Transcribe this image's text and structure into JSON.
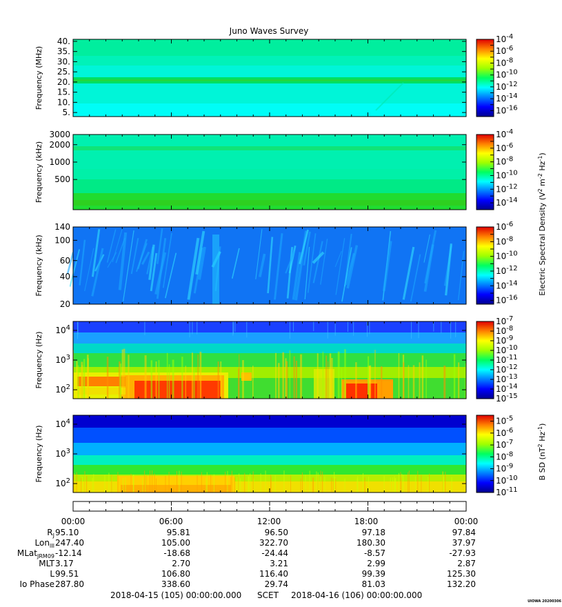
{
  "title": "Juno Waves Survey",
  "stamp": "UIOWA 20200306",
  "chart_data": [
    {
      "type": "heatmap",
      "name": "high-frequency",
      "ylabel": "Frequency (MHz)",
      "yticks": [
        "40.",
        "35.",
        "30.",
        "25.",
        "20.",
        "15.",
        "10.",
        "5."
      ],
      "ylim": [
        3,
        41
      ],
      "colorbar_ticks": [
        "10^-4",
        "10^-6",
        "10^-8",
        "10^-10",
        "10^-12",
        "10^-14",
        "10^-16"
      ],
      "colorbar_range": [
        -17,
        -4
      ]
    },
    {
      "type": "heatmap",
      "name": "hfr-low",
      "ylabel": "Frequency (kHz)",
      "yticks": [
        "3000",
        "2000",
        "1000",
        "500"
      ],
      "ylim": [
        150,
        3000
      ],
      "colorbar_ticks": [
        "10^-4",
        "10^-6",
        "10^-8",
        "10^-10",
        "10^-12",
        "10^-14"
      ],
      "colorbar_range": [
        -15,
        -4
      ]
    },
    {
      "type": "heatmap",
      "name": "lfr-high",
      "ylabel": "Frequency (kHz)",
      "yticks": [
        "140",
        "100",
        "60",
        "40",
        "20"
      ],
      "ylim": [
        20,
        140
      ],
      "colorbar_ticks": [
        "10^-6",
        "10^-8",
        "10^-10",
        "10^-12",
        "10^-14",
        "10^-16"
      ],
      "colorbar_range": [
        -16.5,
        -6
      ]
    },
    {
      "type": "heatmap",
      "name": "lfr-low",
      "ylabel": "Frequency (Hz)",
      "yticks": [
        "10^4",
        "10^3",
        "10^2"
      ],
      "ylim": [
        50,
        20000
      ],
      "colorbar_ticks": [
        "10^-7",
        "10^-8",
        "10^-9",
        "10^-10",
        "10^-11",
        "10^-12",
        "10^-13",
        "10^-14",
        "10^-15"
      ],
      "colorbar_range": [
        -15,
        -7
      ]
    },
    {
      "type": "heatmap",
      "name": "magnetic",
      "ylabel": "Frequency (Hz)",
      "yticks": [
        "10^4",
        "10^3",
        "10^2"
      ],
      "ylim": [
        50,
        20000
      ],
      "colorbar_ticks": [
        "10^-5",
        "10^-6",
        "10^-7",
        "10^-8",
        "10^-9",
        "10^-10",
        "10^-11"
      ],
      "colorbar_range": [
        -11,
        -4.5
      ]
    }
  ],
  "colorbar_titles": {
    "electric": "Electric Spectral Density (V^2 m^-2 Hz^-1)",
    "magnetic": "B SD (nT^2 Hz^-1)"
  },
  "ephemeris": {
    "times": [
      "00:00",
      "06:00",
      "12:00",
      "18:00",
      "00:00"
    ],
    "rows": [
      {
        "label": "R",
        "sub": "J",
        "values": [
          "95.10",
          "95.81",
          "96.50",
          "97.18",
          "97.84"
        ]
      },
      {
        "label": "Lon",
        "sub": "III",
        "values": [
          "247.40",
          "105.00",
          "322.70",
          "180.30",
          "37.97"
        ]
      },
      {
        "label": "MLat",
        "sub": "JRM09",
        "values": [
          "-12.14",
          "-18.68",
          "-24.44",
          "-8.57",
          "-27.93"
        ]
      },
      {
        "label": "MLT",
        "sub": "",
        "values": [
          "3.17",
          "2.70",
          "3.21",
          "2.99",
          "2.87"
        ]
      },
      {
        "label": "L",
        "sub": "",
        "values": [
          "99.51",
          "106.80",
          "116.40",
          "99.39",
          "125.30"
        ]
      },
      {
        "label": "Io Phase",
        "sub": "",
        "values": [
          "287.80",
          "338.60",
          "29.74",
          "81.03",
          "132.20"
        ]
      }
    ]
  },
  "footer": {
    "start": "2018-04-15 (105) 00:00:00.000",
    "scet": "SCET",
    "end": "2018-04-16 (106) 00:00:00.000"
  }
}
